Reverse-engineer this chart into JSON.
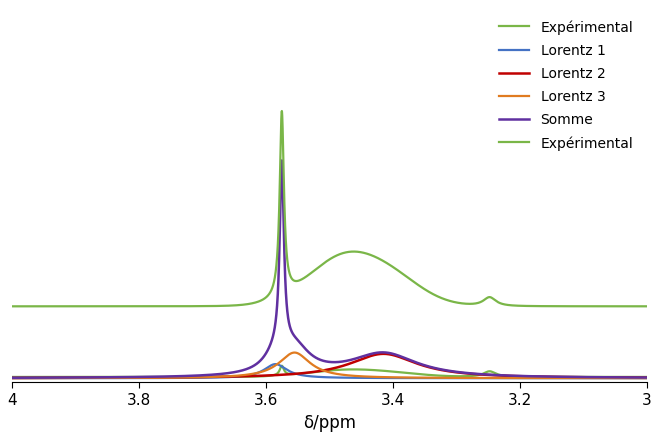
{
  "x_min": 3.0,
  "x_max": 4.0,
  "xlabel": "δ/ppm",
  "legend_entries": [
    "Expérimental",
    "Lorentz 1",
    "Lorentz 2",
    "Lorentz 3",
    "Somme",
    "Expérimental"
  ],
  "colors": {
    "experimental_upper": "#7ab648",
    "lorentz1": "#4472c4",
    "lorentz2": "#c00000",
    "lorentz3": "#e07b20",
    "somme": "#6030a0",
    "experimental_lower": "#7ab648"
  },
  "line_widths": {
    "experimental_upper": 1.6,
    "lorentz1": 1.6,
    "lorentz2": 1.8,
    "lorentz3": 1.6,
    "somme": 1.8,
    "experimental_lower": 1.6
  },
  "background_color": "#ffffff",
  "ylim_max": 1.45
}
